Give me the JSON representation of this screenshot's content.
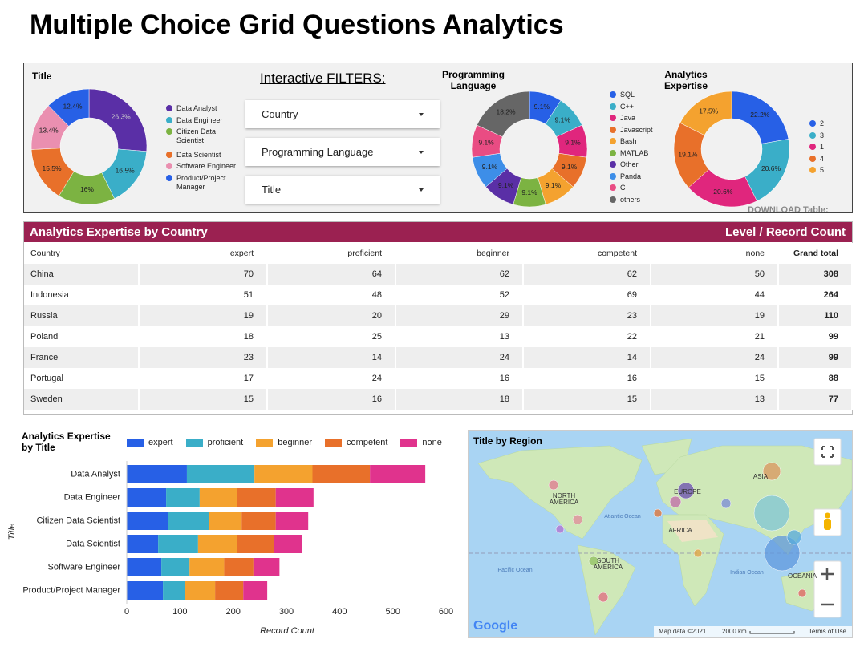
{
  "title": "Multiple Choice Grid Questions Analytics",
  "filters": {
    "label": "Interactive FILTERS:",
    "items": [
      "Country",
      "Programming Language",
      "Title"
    ]
  },
  "chart_data": [
    {
      "type": "donut",
      "title": "Title",
      "categories": [
        "Data Analyst",
        "Data Engineer",
        "Citizen Data Scientist",
        "Data Scientist",
        "Software Engineer",
        "Product/Project Manager"
      ],
      "values": [
        26.3,
        16.5,
        16,
        15.5,
        13.4,
        12.4
      ],
      "value_labels": [
        "26.3%",
        "16.5%",
        "16%",
        "15.5%",
        "13.4%",
        "12.4%"
      ],
      "colors": [
        "#5a2fa6",
        "#3aaec8",
        "#7cb342",
        "#e8702a",
        "#ea8fb0",
        "#2760e6"
      ],
      "legend": "right"
    },
    {
      "type": "donut",
      "title": "Programming Language",
      "categories": [
        "SQL",
        "C++",
        "Java",
        "Javascript",
        "Bash",
        "MATLAB",
        "Other",
        "Panda",
        "C",
        "others"
      ],
      "values": [
        9.1,
        9.1,
        9.1,
        9.1,
        9.1,
        9.1,
        9.1,
        9.1,
        9.1,
        18.2
      ],
      "value_labels": [
        "9.1%",
        "9.1%",
        "9.1%",
        "9.1%",
        "9.1%",
        "9.1%",
        "9.1%",
        "9.1%",
        "9.1%",
        "18.2%"
      ],
      "colors": [
        "#2760e6",
        "#3aaec8",
        "#e0267d",
        "#e8702a",
        "#f4a22f",
        "#7cb342",
        "#5a2fa6",
        "#3d8ee8",
        "#e94c83",
        "#666666"
      ],
      "legend": "right"
    },
    {
      "type": "donut",
      "title": "Analytics Expertise",
      "categories": [
        "2",
        "3",
        "1",
        "4",
        "5"
      ],
      "values": [
        22.2,
        20.6,
        20.6,
        19.1,
        17.5
      ],
      "value_labels": [
        "22.2%",
        "20.6%",
        "20.6%",
        "19.1%",
        "17.5%"
      ],
      "colors": [
        "#2760e6",
        "#3aaec8",
        "#e0267d",
        "#e8702a",
        "#f4a22f"
      ],
      "legend": "right"
    },
    {
      "type": "bar",
      "orientation": "horizontal",
      "stacked": true,
      "title": "Analytics Expertise by Title",
      "x_label": "Record Count",
      "y_label": "Title",
      "categories": [
        "Data Analyst",
        "Data Engineer",
        "Citizen Data Scientist",
        "Data Scientist",
        "Software Engineer",
        "Product/Project Manager"
      ],
      "series": [
        {
          "name": "expert",
          "color": "#2760e6",
          "values": [
            113,
            74,
            78,
            59,
            65,
            68
          ]
        },
        {
          "name": "proficient",
          "color": "#3aaec8",
          "values": [
            127,
            63,
            76,
            75,
            53,
            42
          ]
        },
        {
          "name": "beginner",
          "color": "#f4a22f",
          "values": [
            109,
            71,
            62,
            74,
            65,
            56
          ]
        },
        {
          "name": "competent",
          "color": "#e8702a",
          "values": [
            108,
            72,
            64,
            68,
            55,
            53
          ]
        },
        {
          "name": "none",
          "color": "#e0338d",
          "values": [
            104,
            71,
            61,
            54,
            49,
            45
          ]
        }
      ],
      "xlim": [
        0,
        600
      ],
      "xticks": [
        0,
        100,
        200,
        300,
        400,
        500,
        600
      ],
      "legend": "top"
    }
  ],
  "table": {
    "title": "Analytics Expertise by Country",
    "subtitle": "Level / Record Count",
    "columns": [
      "Country",
      "expert",
      "proficient",
      "beginner",
      "competent",
      "none",
      "Grand total"
    ],
    "rows": [
      [
        "China",
        70,
        64,
        62,
        62,
        50,
        308
      ],
      [
        "Indonesia",
        51,
        48,
        52,
        69,
        44,
        264
      ],
      [
        "Russia",
        19,
        20,
        29,
        23,
        19,
        110
      ],
      [
        "Poland",
        18,
        25,
        13,
        22,
        21,
        99
      ],
      [
        "France",
        23,
        14,
        24,
        14,
        24,
        99
      ],
      [
        "Portugal",
        17,
        24,
        16,
        16,
        15,
        88
      ],
      [
        "Sweden",
        15,
        16,
        18,
        15,
        13,
        77
      ]
    ],
    "download": "DOWNLOAD Table:"
  },
  "map": {
    "title": "Title by Region",
    "labels": [
      "NORTH AMERICA",
      "Atlantic Ocean",
      "EUROPE",
      "ASIA",
      "AFRICA",
      "SOUTH AMERICA",
      "Pacific Ocean",
      "Indian Ocean",
      "OCEANIA"
    ],
    "logo": "Google",
    "attribution": "Map data ©2021",
    "scale": "2000 km",
    "terms": "Terms of Use"
  }
}
